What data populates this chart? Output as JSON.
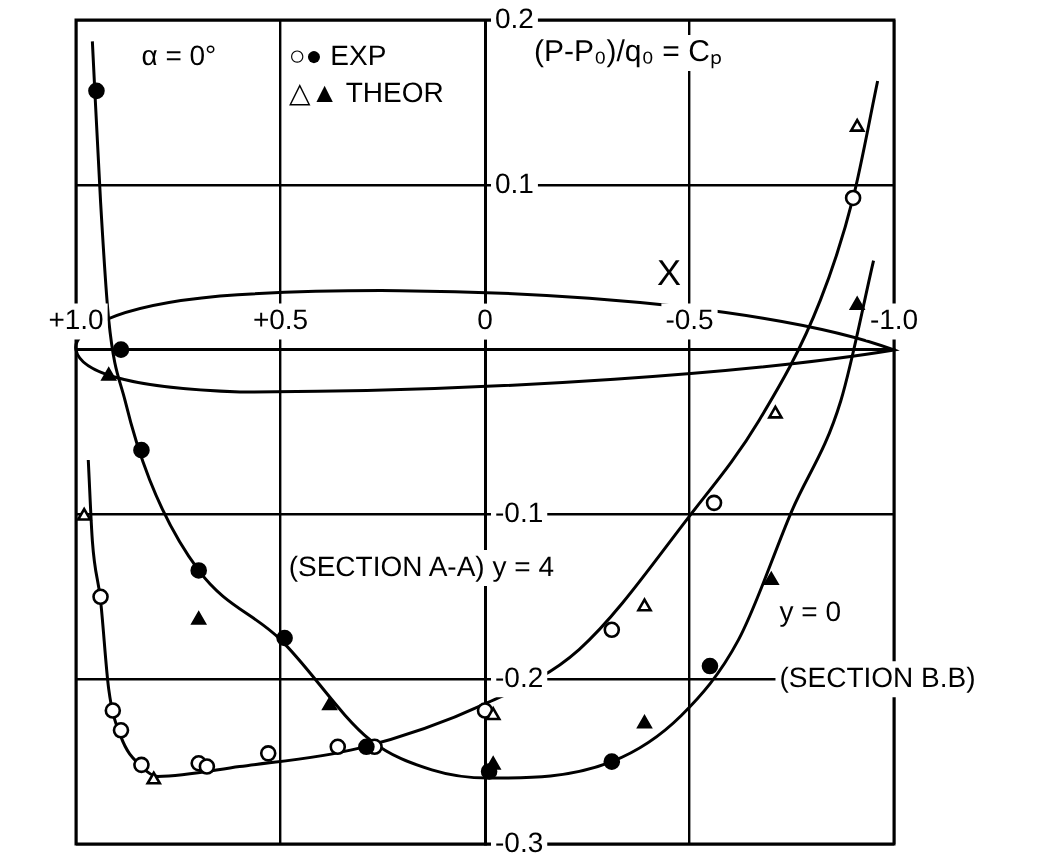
{
  "chart_data": {
    "type": "scatter",
    "xlabel": "X",
    "ylabel": "(P-P₀)/q₀ = Cₚ",
    "xlim": [
      1,
      -1
    ],
    "xticks": [
      {
        "value": 1,
        "label": "+1.0"
      },
      {
        "value": 0.5,
        "label": "+0.5"
      },
      0,
      -0.5,
      {
        "value": -1,
        "label": "-1.0"
      }
    ],
    "ylim": [
      -0.3,
      0.2
    ],
    "yticks": [
      0.2,
      0.1,
      {
        "value": 0,
        "label": null
      },
      -0.1,
      -0.2,
      -0.3
    ],
    "grid": true,
    "legend": false,
    "series": [
      {
        "type": "line",
        "marker": "none",
        "color": "#000000",
        "x": [
          0.97,
          0.96,
          0.94,
          0.92,
          0.89,
          0.84,
          0.8,
          0.6,
          0.31,
          0.0,
          -0.23,
          -0.5,
          -0.67,
          -0.82,
          -0.9,
          -0.96
        ],
        "values": [
          -0.067,
          -0.116,
          -0.152,
          -0.206,
          -0.235,
          -0.253,
          -0.259,
          -0.253,
          -0.242,
          -0.215,
          -0.182,
          -0.101,
          -0.043,
          0.03,
          0.092,
          0.163
        ]
      },
      {
        "type": "line",
        "marker": "none",
        "color": "#000000",
        "x": [
          0.96,
          0.94,
          0.92,
          0.88,
          0.82,
          0.7,
          0.5,
          0.28,
          0.13,
          -0.01,
          -0.31,
          -0.48,
          -0.62,
          -0.75,
          -0.87,
          -0.95
        ],
        "values": [
          0.187,
          0.09,
          0.018,
          -0.031,
          -0.079,
          -0.134,
          -0.176,
          -0.237,
          -0.255,
          -0.26,
          -0.25,
          -0.222,
          -0.176,
          -0.098,
          -0.031,
          0.054
        ]
      },
      {
        "marker": "circle",
        "color": "#ffffff",
        "x": [
          0.94,
          0.91,
          0.89,
          0.84,
          0.7,
          0.68,
          0.53,
          0.36,
          0.27,
          0.0,
          -0.31,
          -0.56,
          -0.9
        ],
        "values": [
          -0.15,
          -0.219,
          -0.231,
          -0.252,
          -0.251,
          -0.253,
          -0.245,
          -0.241,
          -0.241,
          -0.219,
          -0.17,
          -0.093,
          0.092
        ]
      },
      {
        "marker": "triangle",
        "color": "#ffffff",
        "x": [
          0.98,
          0.81,
          -0.02,
          -0.39,
          -0.71,
          -0.91
        ],
        "values": [
          -0.101,
          -0.261,
          -0.222,
          -0.156,
          -0.039,
          0.135
        ]
      },
      {
        "marker": "circle",
        "color": "#000000",
        "x": [
          0.95,
          0.89,
          0.84,
          0.7,
          0.49,
          0.29,
          -0.01,
          -0.31,
          -0.55
        ],
        "values": [
          0.157,
          0.0,
          -0.061,
          -0.134,
          -0.175,
          -0.241,
          -0.256,
          -0.25,
          -0.192
        ]
      },
      {
        "marker": "triangle",
        "color": "#000000",
        "x": [
          0.92,
          0.7,
          0.38,
          -0.02,
          -0.39,
          -0.7,
          -0.91
        ],
        "values": [
          -0.016,
          -0.164,
          -0.216,
          -0.252,
          -0.227,
          -0.14,
          0.027
        ]
      }
    ],
    "annotations": [
      "α = 0°",
      "○● EXP",
      "△▲ THEOR",
      "(SECTION A-A) y = 4",
      "y = 0",
      "(SECTION B.B)"
    ]
  }
}
